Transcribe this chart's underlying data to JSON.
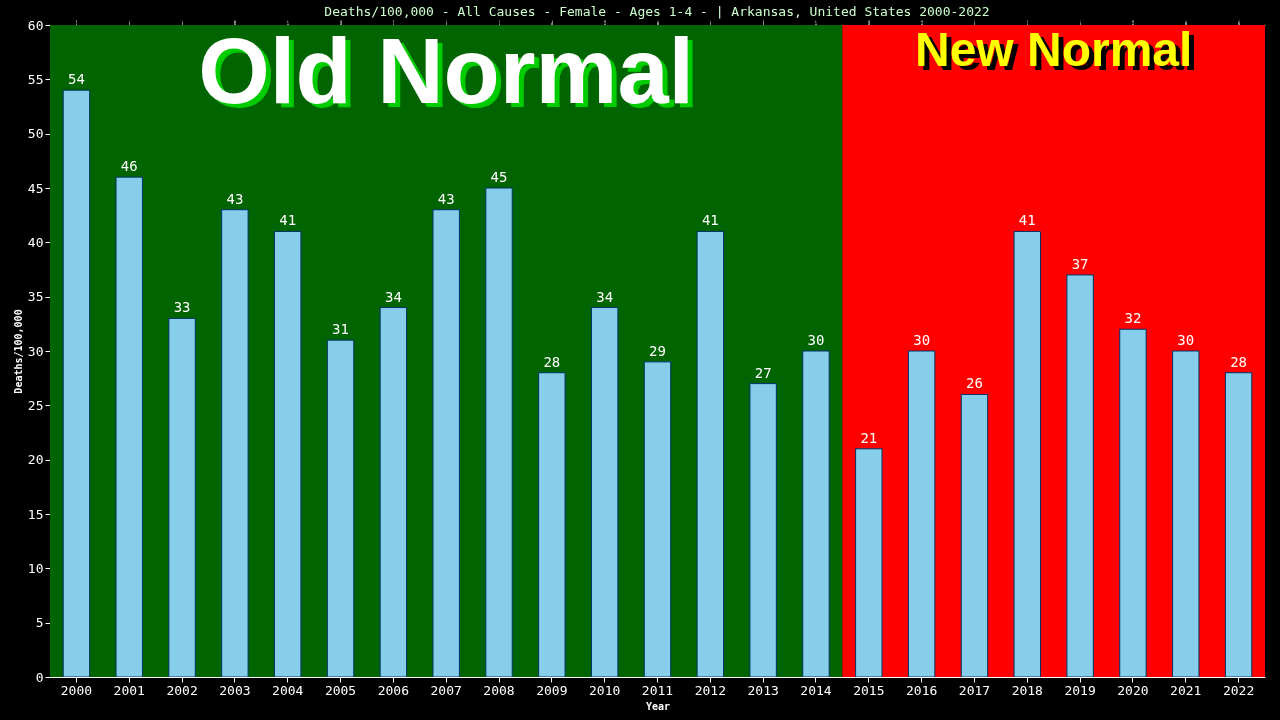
{
  "chart_data": {
    "type": "bar",
    "title": "Deaths/100,000 - All Causes - Female - Ages 1-4 -  | Arkansas, United States 2000-2022",
    "xlabel": "Year",
    "ylabel": "Deaths/100,000",
    "categories": [
      "2000",
      "2001",
      "2002",
      "2003",
      "2004",
      "2005",
      "2006",
      "2007",
      "2008",
      "2009",
      "2010",
      "2011",
      "2012",
      "2013",
      "2014",
      "2015",
      "2016",
      "2017",
      "2018",
      "2019",
      "2020",
      "2021",
      "2022"
    ],
    "values": [
      54,
      46,
      33,
      43,
      41,
      31,
      34,
      43,
      45,
      28,
      34,
      29,
      41,
      27,
      30,
      21,
      30,
      26,
      41,
      37,
      32,
      30,
      28
    ],
    "color": "#87ceeb",
    "data_labels": true,
    "ylim": [
      0,
      60
    ],
    "yticks": [
      0,
      5,
      10,
      15,
      20,
      25,
      30,
      35,
      40,
      45,
      50,
      55,
      60
    ],
    "grid": false,
    "bands": [
      {
        "axis": "x",
        "from": "2000",
        "to": "2014",
        "label": "Old Normal",
        "color": "#006400"
      },
      {
        "axis": "x",
        "from": "2015",
        "to": "2022",
        "label": "New Normal",
        "color": "#ff0000"
      }
    ]
  }
}
